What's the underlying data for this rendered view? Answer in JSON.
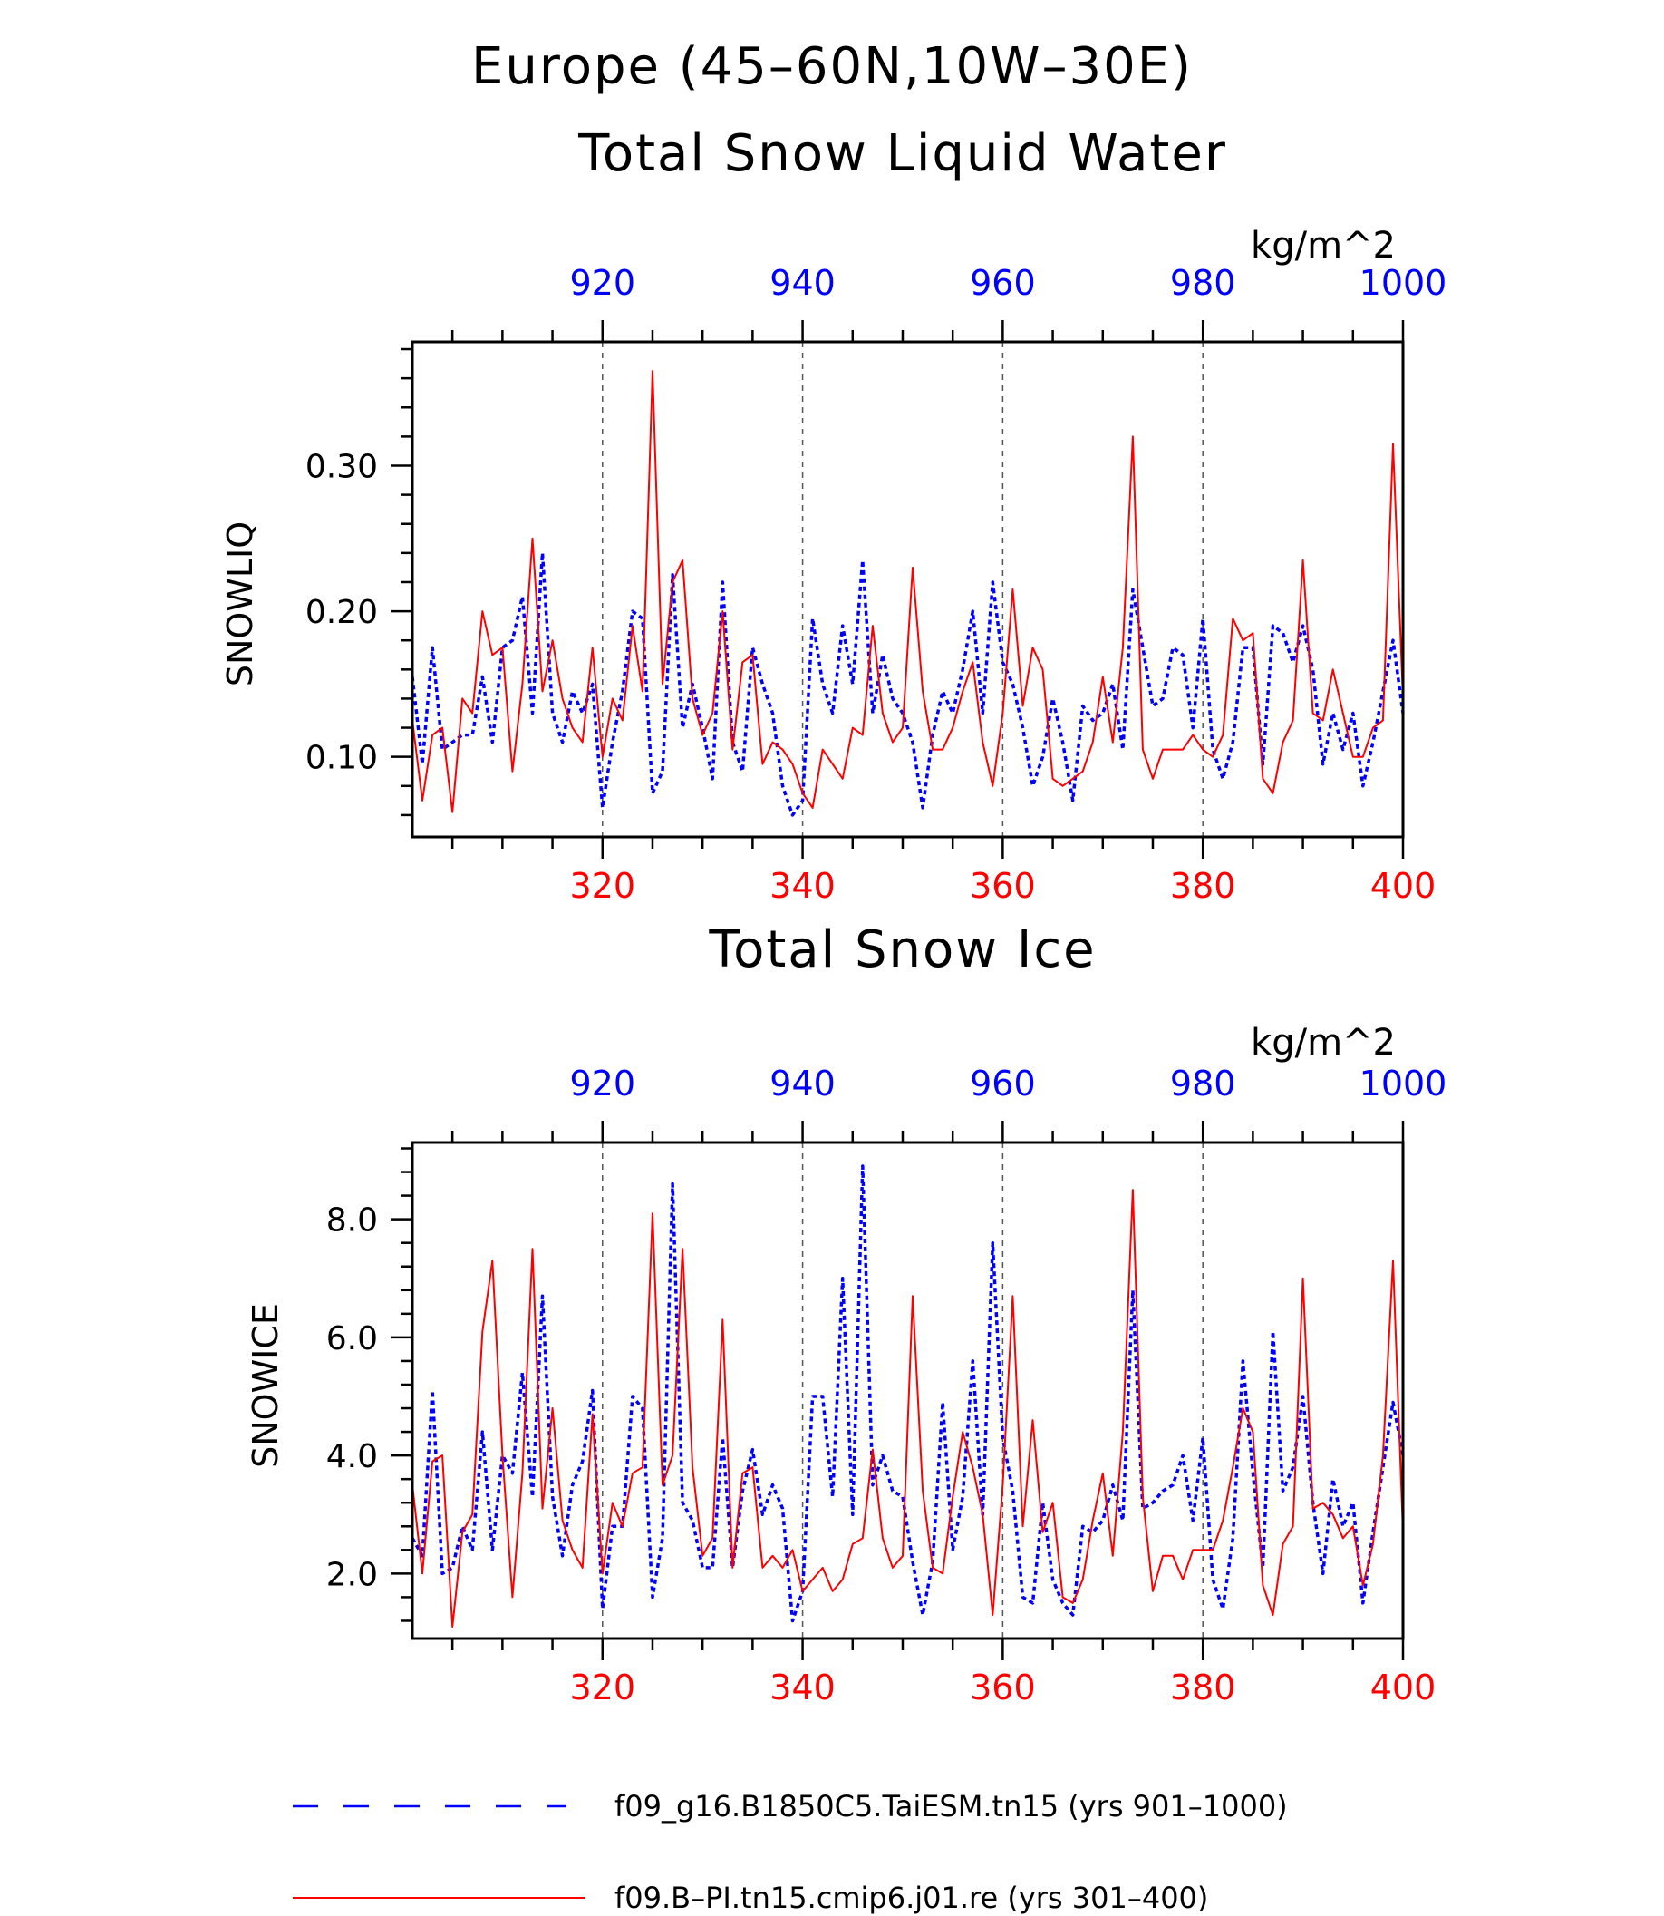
{
  "title": "Europe (45-60N,10W-30E)",
  "colors": {
    "series_a": "#0000ff",
    "series_b": "#ff0000",
    "frame": "#000000",
    "grid": "#555555"
  },
  "chart_data": [
    {
      "type": "line",
      "title": "Total Snow Liquid Water",
      "units": "kg/m^2",
      "ylabel": "SNOWLIQ",
      "ylim": [
        0.045,
        0.385
      ],
      "y_ticks": [
        0.1,
        0.2,
        0.3
      ],
      "y_tick_labels": [
        "0.10",
        "0.20",
        "0.30"
      ],
      "top_axis": {
        "range": [
          901,
          1000
        ],
        "ticks": [
          920,
          940,
          960,
          980,
          1000
        ],
        "labels": [
          "920",
          "940",
          "960",
          "980",
          "1000"
        ],
        "color": "#0000ff"
      },
      "bottom_axis": {
        "range": [
          301,
          400
        ],
        "ticks": [
          320,
          340,
          360,
          380,
          400
        ],
        "labels": [
          "320",
          "340",
          "360",
          "380",
          "400"
        ],
        "color": "#ff0000"
      },
      "grid": "vertical dashed at major ticks",
      "series": [
        {
          "name": "f09_g16.B1850C5.TaiESM.tn15 (yrs 901-1000)",
          "style": "dashed",
          "color": "#0000ff",
          "x": [
            901,
            902,
            903,
            904,
            905,
            906,
            907,
            908,
            909,
            910,
            911,
            912,
            913,
            914,
            915,
            916,
            917,
            918,
            919,
            920,
            921,
            922,
            923,
            924,
            925,
            926,
            927,
            928,
            929,
            930,
            931,
            932,
            933,
            934,
            935,
            936,
            937,
            938,
            939,
            940,
            941,
            942,
            943,
            944,
            945,
            946,
            947,
            948,
            949,
            950,
            951,
            952,
            953,
            954,
            955,
            956,
            957,
            958,
            959,
            960,
            961,
            962,
            963,
            964,
            965,
            966,
            967,
            968,
            969,
            970,
            971,
            972,
            973,
            974,
            975,
            976,
            977,
            978,
            979,
            980,
            981,
            982,
            983,
            984,
            985,
            986,
            987,
            988,
            989,
            990,
            991,
            992,
            993,
            994,
            995,
            996,
            997,
            998,
            999,
            1000
          ],
          "values": [
            0.155,
            0.095,
            0.175,
            0.105,
            0.11,
            0.115,
            0.115,
            0.155,
            0.11,
            0.175,
            0.18,
            0.21,
            0.13,
            0.24,
            0.13,
            0.11,
            0.145,
            0.13,
            0.15,
            0.065,
            0.11,
            0.145,
            0.2,
            0.195,
            0.075,
            0.09,
            0.225,
            0.12,
            0.15,
            0.12,
            0.085,
            0.22,
            0.11,
            0.09,
            0.175,
            0.15,
            0.13,
            0.08,
            0.06,
            0.07,
            0.195,
            0.15,
            0.13,
            0.19,
            0.15,
            0.235,
            0.13,
            0.17,
            0.14,
            0.13,
            0.11,
            0.065,
            0.115,
            0.145,
            0.13,
            0.16,
            0.2,
            0.13,
            0.22,
            0.165,
            0.15,
            0.12,
            0.08,
            0.1,
            0.14,
            0.11,
            0.07,
            0.135,
            0.125,
            0.13,
            0.15,
            0.105,
            0.215,
            0.175,
            0.135,
            0.14,
            0.175,
            0.17,
            0.12,
            0.195,
            0.105,
            0.085,
            0.11,
            0.175,
            0.175,
            0.095,
            0.19,
            0.185,
            0.165,
            0.19,
            0.16,
            0.095,
            0.13,
            0.105,
            0.13,
            0.08,
            0.11,
            0.145,
            0.18,
            0.13
          ]
        },
        {
          "name": "f09.B-PI.tn15.cmip6.j01.re (yrs 301-400)",
          "style": "solid",
          "color": "#ff0000",
          "x": [
            301,
            302,
            303,
            304,
            305,
            306,
            307,
            308,
            309,
            310,
            311,
            312,
            313,
            314,
            315,
            316,
            317,
            318,
            319,
            320,
            321,
            322,
            323,
            324,
            325,
            326,
            327,
            328,
            329,
            330,
            331,
            332,
            333,
            334,
            335,
            336,
            337,
            338,
            339,
            340,
            341,
            342,
            343,
            344,
            345,
            346,
            347,
            348,
            349,
            350,
            351,
            352,
            353,
            354,
            355,
            356,
            357,
            358,
            359,
            360,
            361,
            362,
            363,
            364,
            365,
            366,
            367,
            368,
            369,
            370,
            371,
            372,
            373,
            374,
            375,
            376,
            377,
            378,
            379,
            380,
            381,
            382,
            383,
            384,
            385,
            386,
            387,
            388,
            389,
            390,
            391,
            392,
            393,
            394,
            395,
            396,
            397,
            398,
            399,
            400
          ],
          "values": [
            0.125,
            0.07,
            0.115,
            0.12,
            0.062,
            0.14,
            0.13,
            0.2,
            0.17,
            0.175,
            0.09,
            0.15,
            0.25,
            0.145,
            0.18,
            0.14,
            0.12,
            0.11,
            0.175,
            0.1,
            0.14,
            0.125,
            0.19,
            0.145,
            0.365,
            0.15,
            0.22,
            0.235,
            0.14,
            0.115,
            0.13,
            0.2,
            0.105,
            0.165,
            0.17,
            0.095,
            0.11,
            0.105,
            0.095,
            0.075,
            0.065,
            0.105,
            0.095,
            0.085,
            0.12,
            0.115,
            0.19,
            0.13,
            0.11,
            0.12,
            0.23,
            0.145,
            0.105,
            0.105,
            0.12,
            0.145,
            0.165,
            0.11,
            0.08,
            0.13,
            0.215,
            0.135,
            0.175,
            0.16,
            0.085,
            0.08,
            0.085,
            0.09,
            0.11,
            0.155,
            0.11,
            0.175,
            0.32,
            0.105,
            0.085,
            0.105,
            0.105,
            0.105,
            0.115,
            0.105,
            0.1,
            0.115,
            0.195,
            0.18,
            0.185,
            0.085,
            0.075,
            0.11,
            0.125,
            0.235,
            0.13,
            0.125,
            0.16,
            0.13,
            0.1,
            0.1,
            0.12,
            0.125,
            0.315,
            0.14
          ]
        }
      ]
    },
    {
      "type": "line",
      "title": "Total Snow Ice",
      "units": "kg/m^2",
      "ylabel": "SNOWICE",
      "ylim": [
        0.9,
        9.3
      ],
      "y_ticks": [
        2.0,
        4.0,
        6.0,
        8.0
      ],
      "y_tick_labels": [
        "2.0",
        "4.0",
        "6.0",
        "8.0"
      ],
      "top_axis": {
        "range": [
          901,
          1000
        ],
        "ticks": [
          920,
          940,
          960,
          980,
          1000
        ],
        "labels": [
          "920",
          "940",
          "960",
          "980",
          "1000"
        ],
        "color": "#0000ff"
      },
      "bottom_axis": {
        "range": [
          301,
          400
        ],
        "ticks": [
          320,
          340,
          360,
          380,
          400
        ],
        "labels": [
          "320",
          "340",
          "360",
          "380",
          "400"
        ],
        "color": "#ff0000"
      },
      "grid": "vertical dashed at major ticks",
      "series": [
        {
          "name": "f09_g16.B1850C5.TaiESM.tn15 (yrs 901-1000)",
          "style": "dashed",
          "color": "#0000ff",
          "x": [
            901,
            902,
            903,
            904,
            905,
            906,
            907,
            908,
            909,
            910,
            911,
            912,
            913,
            914,
            915,
            916,
            917,
            918,
            919,
            920,
            921,
            922,
            923,
            924,
            925,
            926,
            927,
            928,
            929,
            930,
            931,
            932,
            933,
            934,
            935,
            936,
            937,
            938,
            939,
            940,
            941,
            942,
            943,
            944,
            945,
            946,
            947,
            948,
            949,
            950,
            951,
            952,
            953,
            954,
            955,
            956,
            957,
            958,
            959,
            960,
            961,
            962,
            963,
            964,
            965,
            966,
            967,
            968,
            969,
            970,
            971,
            972,
            973,
            974,
            975,
            976,
            977,
            978,
            979,
            980,
            981,
            982,
            983,
            984,
            985,
            986,
            987,
            988,
            989,
            990,
            991,
            992,
            993,
            994,
            995,
            996,
            997,
            998,
            999,
            1000
          ],
          "values": [
            2.6,
            2.3,
            5.1,
            2.0,
            2.1,
            2.8,
            2.4,
            4.4,
            2.4,
            4.0,
            3.7,
            5.4,
            3.3,
            6.7,
            3.3,
            2.3,
            3.5,
            3.9,
            5.1,
            1.4,
            2.8,
            2.8,
            5.0,
            4.8,
            1.6,
            2.6,
            8.6,
            3.2,
            2.9,
            2.1,
            2.1,
            4.3,
            2.1,
            3.4,
            4.1,
            3.0,
            3.5,
            3.1,
            1.2,
            1.7,
            5.0,
            5.0,
            3.3,
            7.0,
            3.0,
            8.9,
            3.5,
            4.0,
            3.4,
            3.3,
            2.2,
            1.3,
            2.2,
            4.9,
            2.4,
            3.3,
            5.6,
            3.0,
            7.6,
            4.3,
            3.4,
            1.6,
            1.5,
            3.2,
            1.9,
            1.5,
            1.3,
            2.8,
            2.7,
            2.9,
            3.5,
            2.9,
            6.8,
            3.1,
            3.2,
            3.4,
            3.5,
            4.0,
            2.9,
            4.3,
            1.9,
            1.4,
            2.6,
            5.6,
            3.7,
            2.1,
            6.1,
            3.4,
            3.8,
            5.0,
            3.2,
            2.0,
            3.6,
            2.8,
            3.2,
            1.5,
            2.7,
            3.8,
            4.9,
            4.0
          ]
        },
        {
          "name": "f09.B-PI.tn15.cmip6.j01.re (yrs 301-400)",
          "style": "solid",
          "color": "#ff0000",
          "x": [
            301,
            302,
            303,
            304,
            305,
            306,
            307,
            308,
            309,
            310,
            311,
            312,
            313,
            314,
            315,
            316,
            317,
            318,
            319,
            320,
            321,
            322,
            323,
            324,
            325,
            326,
            327,
            328,
            329,
            330,
            331,
            332,
            333,
            334,
            335,
            336,
            337,
            338,
            339,
            340,
            341,
            342,
            343,
            344,
            345,
            346,
            347,
            348,
            349,
            350,
            351,
            352,
            353,
            354,
            355,
            356,
            357,
            358,
            359,
            360,
            361,
            362,
            363,
            364,
            365,
            366,
            367,
            368,
            369,
            370,
            371,
            372,
            373,
            374,
            375,
            376,
            377,
            378,
            379,
            380,
            381,
            382,
            383,
            384,
            385,
            386,
            387,
            388,
            389,
            390,
            391,
            392,
            393,
            394,
            395,
            396,
            397,
            398,
            399,
            400
          ],
          "values": [
            3.5,
            2.0,
            3.9,
            4.0,
            1.1,
            2.7,
            3.0,
            6.1,
            7.3,
            4.0,
            1.6,
            3.7,
            7.5,
            3.1,
            4.8,
            2.9,
            2.4,
            2.1,
            4.7,
            2.0,
            3.2,
            2.8,
            3.7,
            3.8,
            8.1,
            3.5,
            4.0,
            7.5,
            3.8,
            2.3,
            2.6,
            6.3,
            2.1,
            3.7,
            3.8,
            2.1,
            2.3,
            2.1,
            2.4,
            1.7,
            1.9,
            2.1,
            1.7,
            1.9,
            2.5,
            2.6,
            4.1,
            2.6,
            2.1,
            2.3,
            6.7,
            3.4,
            2.1,
            2.0,
            3.3,
            4.4,
            3.8,
            3.0,
            1.3,
            3.5,
            6.7,
            2.8,
            4.6,
            2.7,
            3.2,
            1.6,
            1.5,
            1.9,
            2.9,
            3.7,
            2.3,
            4.4,
            8.5,
            3.3,
            1.7,
            2.3,
            2.3,
            1.9,
            2.4,
            2.4,
            2.4,
            2.9,
            3.8,
            4.8,
            4.4,
            1.8,
            1.3,
            2.5,
            2.8,
            7.0,
            3.1,
            3.2,
            3.0,
            2.6,
            2.8,
            1.8,
            2.5,
            4.0,
            7.3,
            2.7
          ]
        }
      ]
    }
  ],
  "legend": {
    "items": [
      {
        "label": "f09_g16.B1850C5.TaiESM.tn15 (yrs 901–1000)",
        "style": "dashed",
        "color": "#0000ff"
      },
      {
        "label": "f09.B–PI.tn15.cmip6.j01.re (yrs 301–400)",
        "style": "solid",
        "color": "#ff0000"
      }
    ]
  },
  "display": {
    "title": "Europe (45–60N,10W–30E)"
  }
}
